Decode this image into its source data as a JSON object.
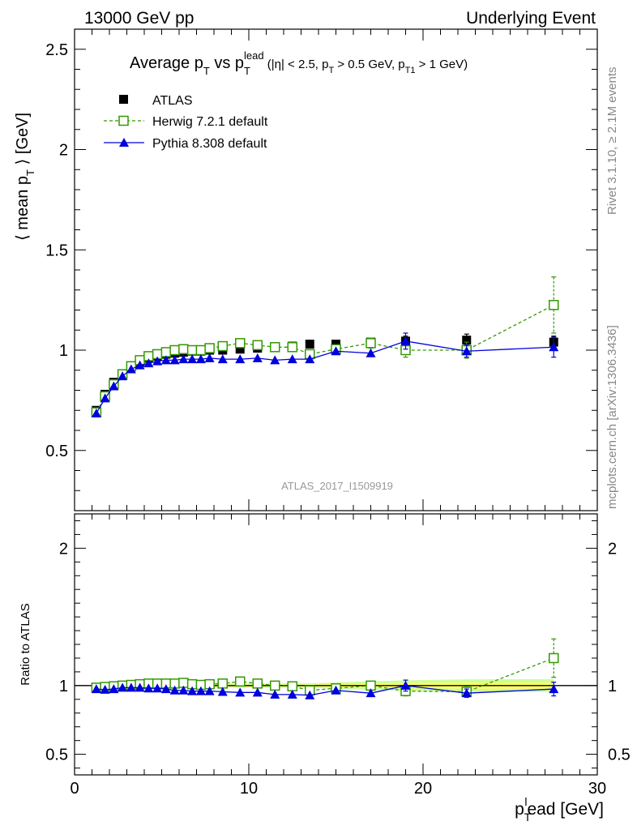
{
  "header": {
    "left": "13000 GeV pp",
    "right": "Underlying Event"
  },
  "side": {
    "rivet": "Rivet 3.1.10, ≥ 2.1M events",
    "mcplots": "mcplots.cern.ch [arXiv:1306.3436]"
  },
  "analysis_label": "ATLAS_2017_I1509919",
  "colors": {
    "data": "#000000",
    "herwig": "#339900",
    "pythia": "#0000dd",
    "band_inner": "#ffff66",
    "band_outer": "#ccff99"
  },
  "chart_data": [
    {
      "type": "scatter",
      "title": "Average p_T vs p_T^lead (|η| < 2.5, p_T > 0.5 GeV, p_T1 > 1 GeV)",
      "title_parts": {
        "main": "Average p",
        "main_sub": "T",
        "vs": " vs p",
        "vs_sub": "T",
        "vs_sup": "lead",
        "cuts_open": " (|η| < 2.5, p",
        "cuts_sub1": "T",
        "cuts_mid": " > 0.5 GeV, p",
        "cuts_sub2": "T1",
        "cuts_close": " > 1 GeV)"
      },
      "ylabel": "⟨ mean p_T ⟩ [GeV]",
      "ylabel_parts": {
        "pre": "⟨ mean p",
        "sub": "T",
        "post": " ⟩ [GeV]"
      },
      "xlim": [
        0,
        30
      ],
      "ylim": [
        0.2,
        2.6
      ],
      "yticks": [
        0.5,
        1,
        1.5,
        2,
        2.5
      ],
      "ytick_labels": [
        "0.5",
        "1",
        "1.5",
        "2",
        "2.5"
      ],
      "legend_position": "top-left",
      "series": [
        {
          "name": "ATLAS",
          "marker": "filled-square",
          "x": [
            1.25,
            1.75,
            2.25,
            2.75,
            3.25,
            3.75,
            4.25,
            4.75,
            5.25,
            5.75,
            6.25,
            6.75,
            7.25,
            7.75,
            8.5,
            9.5,
            10.5,
            11.5,
            12.5,
            13.5,
            15,
            17,
            19,
            22.5,
            27.5
          ],
          "y": [
            0.7,
            0.78,
            0.84,
            0.88,
            0.92,
            0.94,
            0.96,
            0.97,
            0.98,
            0.985,
            0.99,
            0.995,
            0.995,
            1.0,
            1.0,
            1.005,
            1.01,
            1.015,
            1.02,
            1.03,
            1.03,
            1.04,
            1.045,
            1.05,
            1.04
          ],
          "err": [
            0.01,
            0.01,
            0.01,
            0.01,
            0.01,
            0.01,
            0.01,
            0.01,
            0.01,
            0.01,
            0.01,
            0.01,
            0.01,
            0.01,
            0.01,
            0.01,
            0.01,
            0.01,
            0.01,
            0.01,
            0.015,
            0.02,
            0.025,
            0.03,
            0.03
          ]
        },
        {
          "name": "Herwig 7.2.1 default",
          "marker": "open-square",
          "dashed": true,
          "x": [
            1.25,
            1.75,
            2.25,
            2.75,
            3.25,
            3.75,
            4.25,
            4.75,
            5.25,
            5.75,
            6.25,
            6.75,
            7.25,
            7.75,
            8.5,
            9.5,
            10.5,
            11.5,
            12.5,
            13.5,
            15,
            17,
            19,
            22.5,
            27.5
          ],
          "y": [
            0.69,
            0.77,
            0.83,
            0.88,
            0.92,
            0.95,
            0.97,
            0.98,
            0.99,
            1.0,
            1.005,
            1.0,
            1.0,
            1.01,
            1.02,
            1.035,
            1.025,
            1.015,
            1.015,
            0.98,
            1.005,
            1.035,
            1.0,
            1.0,
            1.225
          ],
          "err": [
            0.005,
            0.005,
            0.005,
            0.005,
            0.005,
            0.005,
            0.005,
            0.005,
            0.005,
            0.005,
            0.005,
            0.005,
            0.005,
            0.005,
            0.005,
            0.01,
            0.01,
            0.01,
            0.015,
            0.015,
            0.02,
            0.025,
            0.035,
            0.04,
            0.14
          ]
        },
        {
          "name": "Pythia 8.308 default",
          "marker": "filled-triangle",
          "x": [
            1.25,
            1.75,
            2.25,
            2.75,
            3.25,
            3.75,
            4.25,
            4.75,
            5.25,
            5.75,
            6.25,
            6.75,
            7.25,
            7.75,
            8.5,
            9.5,
            10.5,
            11.5,
            12.5,
            13.5,
            15,
            17,
            19,
            22.5,
            27.5
          ],
          "y": [
            0.685,
            0.76,
            0.82,
            0.87,
            0.905,
            0.925,
            0.935,
            0.945,
            0.95,
            0.95,
            0.955,
            0.955,
            0.955,
            0.96,
            0.955,
            0.955,
            0.96,
            0.95,
            0.955,
            0.955,
            0.995,
            0.985,
            1.045,
            0.995,
            1.015
          ],
          "err": [
            0.005,
            0.005,
            0.005,
            0.005,
            0.005,
            0.005,
            0.005,
            0.005,
            0.005,
            0.005,
            0.005,
            0.005,
            0.005,
            0.005,
            0.005,
            0.01,
            0.01,
            0.01,
            0.01,
            0.015,
            0.015,
            0.02,
            0.04,
            0.03,
            0.05
          ]
        }
      ]
    },
    {
      "type": "scatter",
      "ylabel": "Ratio to ATLAS",
      "xlabel": "p_T^lead [GeV]",
      "xlabel_parts": {
        "pre": "p",
        "sub": "T",
        "sup": "l",
        "post": "ead [GeV]"
      },
      "xlim": [
        0,
        30
      ],
      "ylim": [
        0.35,
        2.25
      ],
      "xticks": [
        0,
        10,
        20,
        30
      ],
      "xtick_labels": [
        "0",
        "10",
        "20",
        "30"
      ],
      "yticks": [
        0.5,
        1,
        2
      ],
      "ytick_labels": [
        "0.5",
        "1",
        "2"
      ],
      "reference_line": 1,
      "series": [
        {
          "name": "Herwig 7.2.1 default",
          "marker": "open-square",
          "dashed": true,
          "x": [
            1.25,
            1.75,
            2.25,
            2.75,
            3.25,
            3.75,
            4.25,
            4.75,
            5.25,
            5.75,
            6.25,
            6.75,
            7.25,
            7.75,
            8.5,
            9.5,
            10.5,
            11.5,
            12.5,
            13.5,
            15,
            17,
            19,
            22.5,
            27.5
          ],
          "y": [
            0.985,
            0.99,
            0.995,
            1.0,
            1.005,
            1.01,
            1.015,
            1.015,
            1.015,
            1.015,
            1.02,
            1.01,
            1.005,
            1.01,
            1.015,
            1.03,
            1.015,
            1.0,
            0.995,
            0.965,
            0.98,
            1.0,
            0.96,
            0.955,
            1.2
          ],
          "err": [
            0.005,
            0.005,
            0.005,
            0.005,
            0.005,
            0.005,
            0.005,
            0.005,
            0.005,
            0.005,
            0.005,
            0.005,
            0.005,
            0.005,
            0.005,
            0.01,
            0.01,
            0.01,
            0.015,
            0.015,
            0.02,
            0.025,
            0.035,
            0.04,
            0.14
          ]
        },
        {
          "name": "Pythia 8.308 default",
          "marker": "filled-triangle",
          "x": [
            1.25,
            1.75,
            2.25,
            2.75,
            3.25,
            3.75,
            4.25,
            4.75,
            5.25,
            5.75,
            6.25,
            6.75,
            7.25,
            7.75,
            8.5,
            9.5,
            10.5,
            11.5,
            12.5,
            13.5,
            15,
            17,
            19,
            22.5,
            27.5
          ],
          "y": [
            0.975,
            0.97,
            0.975,
            0.985,
            0.985,
            0.985,
            0.98,
            0.98,
            0.975,
            0.965,
            0.965,
            0.96,
            0.96,
            0.96,
            0.955,
            0.95,
            0.95,
            0.935,
            0.935,
            0.93,
            0.965,
            0.945,
            1.0,
            0.945,
            0.975
          ],
          "err": [
            0.005,
            0.005,
            0.005,
            0.005,
            0.005,
            0.005,
            0.005,
            0.005,
            0.005,
            0.005,
            0.005,
            0.005,
            0.005,
            0.005,
            0.005,
            0.01,
            0.01,
            0.01,
            0.01,
            0.015,
            0.015,
            0.02,
            0.04,
            0.03,
            0.05
          ]
        }
      ]
    }
  ]
}
